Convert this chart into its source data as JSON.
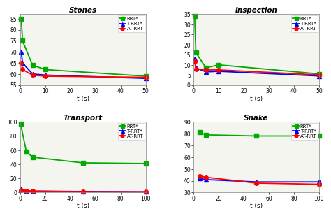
{
  "stones": {
    "title": "Stones",
    "t": [
      0.5,
      1,
      5,
      10,
      50
    ],
    "rrt_star": [
      85,
      75,
      64,
      62,
      59
    ],
    "t_rrt_star": [
      70,
      65,
      60,
      59.5,
      58
    ],
    "at_rrt": [
      65,
      62,
      59.5,
      59,
      58.5
    ],
    "ylim": [
      55,
      87
    ],
    "yticks": [
      55,
      60,
      65,
      70,
      75,
      80,
      85
    ],
    "xlim": [
      0,
      50
    ],
    "xticks": [
      0,
      10,
      20,
      30,
      40,
      50
    ]
  },
  "inspection": {
    "title": "Inspection",
    "t": [
      0.5,
      1,
      5,
      10,
      50
    ],
    "rrt_star": [
      34,
      16,
      8.5,
      10,
      5.5
    ],
    "t_rrt_star": [
      13,
      8.5,
      6.5,
      6.8,
      4.5
    ],
    "at_rrt": [
      11.5,
      8,
      7.5,
      7.5,
      5
    ],
    "ylim": [
      0,
      35
    ],
    "yticks": [
      0,
      5,
      10,
      15,
      20,
      25,
      30,
      35
    ],
    "xlim": [
      0,
      50
    ],
    "xticks": [
      0,
      10,
      20,
      30,
      40,
      50
    ]
  },
  "transport": {
    "title": "Transport",
    "t": [
      0.5,
      5,
      10,
      50,
      100
    ],
    "rrt_star": [
      97,
      58,
      50,
      42,
      41
    ],
    "t_rrt_star": [
      5,
      2.5,
      2,
      1.5,
      1
    ],
    "at_rrt": [
      3,
      2.5,
      2,
      1.2,
      1
    ],
    "ylim": [
      0,
      100
    ],
    "yticks": [
      0,
      20,
      40,
      60,
      80,
      100
    ],
    "xlim": [
      0,
      100
    ],
    "xticks": [
      0,
      20,
      40,
      60,
      80,
      100
    ]
  },
  "snake": {
    "title": "Snake",
    "t": [
      5,
      10,
      50,
      100
    ],
    "rrt_star": [
      81,
      79,
      78,
      78
    ],
    "t_rrt_star": [
      42,
      41,
      39,
      39
    ],
    "at_rrt": [
      44,
      43,
      38,
      37
    ],
    "ylim": [
      30,
      90
    ],
    "yticks": [
      30,
      40,
      50,
      60,
      70,
      80,
      90
    ],
    "xlim": [
      0,
      100
    ],
    "xticks": [
      0,
      20,
      40,
      60,
      80,
      100
    ]
  },
  "colors": {
    "rrt_star": "#00aa00",
    "t_rrt_star": "#0000ff",
    "at_rrt": "#ff0000"
  },
  "legend_labels": [
    "RRT*",
    "T-RRT*",
    "AT-RRT"
  ],
  "xlabel": "t (s)",
  "bg_color": "#f5f5f0",
  "fig_bg": "#ffffff"
}
